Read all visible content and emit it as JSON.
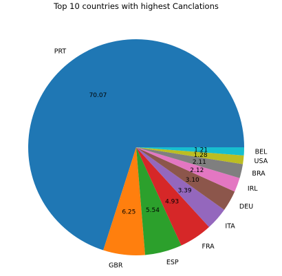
{
  "chart_data": {
    "type": "pie",
    "title": "Top 10 countries with highest Canclations",
    "categories": [
      "PRT",
      "GBR",
      "ESP",
      "FRA",
      "ITA",
      "DEU",
      "IRL",
      "BRA",
      "USA",
      "BEL"
    ],
    "values": [
      70.07,
      6.25,
      5.54,
      4.93,
      3.39,
      3.1,
      2.12,
      2.11,
      1.28,
      1.21
    ],
    "value_labels": [
      "70.07",
      "6.25",
      "5.54",
      "4.93",
      "3.39",
      "3.10",
      "2.12",
      "2.11",
      "1.28",
      "1.21"
    ],
    "colors": [
      "#1f77b4",
      "#ff7f0e",
      "#2ca02c",
      "#d62728",
      "#9467bd",
      "#8c564b",
      "#e377c2",
      "#7f7f7f",
      "#bcbd22",
      "#17becf"
    ],
    "start_angle_deg": 0,
    "direction": "counterclockwise",
    "legend": "none"
  }
}
